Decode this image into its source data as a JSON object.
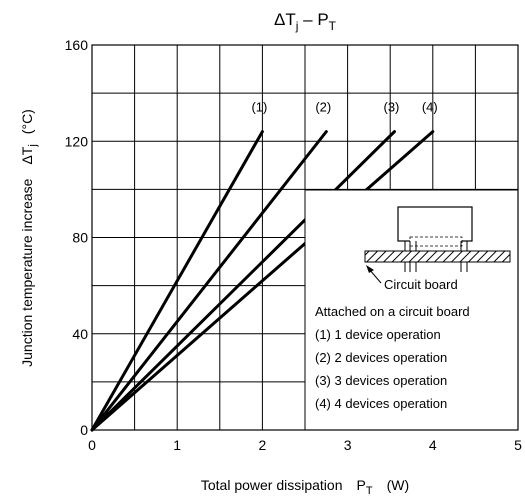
{
  "chart_data": {
    "type": "line",
    "title": {
      "main": "ΔT",
      "main_sub": "j",
      "sep": " – ",
      "p": "P",
      "p_sub": "T"
    },
    "xlabel": {
      "text": "Total power dissipation",
      "symbol": "P",
      "symbol_sub": "T",
      "unit": "(W)"
    },
    "ylabel": {
      "text": "Junction temperature increase",
      "symbol": "ΔT",
      "symbol_sub": "j",
      "unit": "(°C)"
    },
    "xlim": [
      0,
      5
    ],
    "ylim": [
      0,
      160
    ],
    "x_ticks": [
      "0",
      "1",
      "2",
      "3",
      "4",
      "5"
    ],
    "y_ticks": [
      "0",
      "40",
      "80",
      "120",
      "160"
    ],
    "grid": true,
    "series": [
      {
        "name": "(1)",
        "x": [
          0,
          2.0
        ],
        "y": [
          0,
          124
        ]
      },
      {
        "name": "(2)",
        "x": [
          0,
          2.75
        ],
        "y": [
          0,
          124
        ]
      },
      {
        "name": "(3)",
        "x": [
          0,
          3.55
        ],
        "y": [
          0,
          124
        ]
      },
      {
        "name": "(4)",
        "x": [
          0,
          4.0
        ],
        "y": [
          0,
          124
        ]
      }
    ],
    "inset": {
      "diagram_label": "Circuit board",
      "heading": "Attached on a circuit board",
      "legend": [
        "(1) 1 device operation",
        "(2) 2 devices operation",
        "(3) 3 devices operation",
        "(4) 4 devices operation"
      ]
    }
  }
}
